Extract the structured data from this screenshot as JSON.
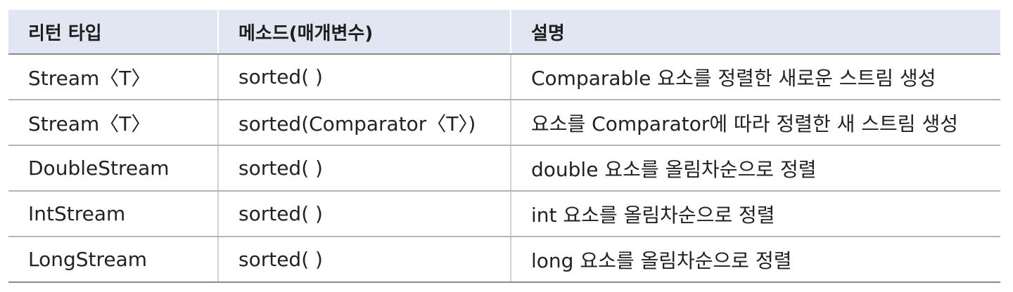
{
  "table": {
    "headers": [
      "리턴 타입",
      "메소드(매개변수)",
      "설명"
    ],
    "rows": [
      [
        "Stream〈T〉",
        "sorted( )",
        "Comparable 요소를 정렬한 새로운 스트림 생성"
      ],
      [
        "Stream〈T〉",
        "sorted(Comparator〈T〉)",
        "요소를 Comparator에 따라 정렬한 새 스트림 생성"
      ],
      [
        "DoubleStream",
        "sorted( )",
        "double 요소를 올림차순으로 정렬"
      ],
      [
        "IntStream",
        "sorted( )",
        "int 요소를 올림차순으로 정렬"
      ],
      [
        "LongStream",
        "sorted( )",
        "long 요소를 올림차순으로 정렬"
      ]
    ]
  },
  "colors": {
    "header_background": "#e1e6f2",
    "text": "#222222",
    "row_border": "#b4b4b4"
  }
}
